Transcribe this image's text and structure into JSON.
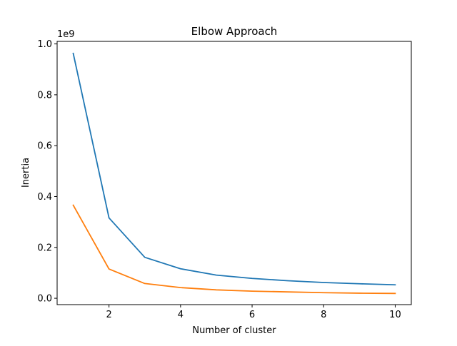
{
  "chart_data": {
    "type": "line",
    "title": "Elbow Approach",
    "xlabel": "Number of cluster",
    "ylabel": "Inertia",
    "y_offset_label": "1e9",
    "xlim": [
      0.55,
      10.45
    ],
    "ylim": [
      -0.025,
      1.01
    ],
    "x_ticks": [
      2,
      4,
      6,
      8,
      10
    ],
    "x_tick_labels": [
      "2",
      "4",
      "6",
      "8",
      "10"
    ],
    "y_ticks": [
      0.0,
      0.2,
      0.4,
      0.6,
      0.8,
      1.0
    ],
    "y_tick_labels": [
      "0.0",
      "0.2",
      "0.4",
      "0.6",
      "0.8",
      "1.0"
    ],
    "grid": false,
    "x": [
      1,
      2,
      3,
      4,
      5,
      6,
      7,
      8,
      9,
      10
    ],
    "series": [
      {
        "color": "#1f77b4",
        "values": [
          0.963,
          0.316,
          0.161,
          0.116,
          0.091,
          0.078,
          0.069,
          0.062,
          0.057,
          0.053
        ]
      },
      {
        "color": "#ff7f0e",
        "values": [
          0.366,
          0.115,
          0.058,
          0.042,
          0.033,
          0.028,
          0.025,
          0.022,
          0.02,
          0.019
        ]
      }
    ]
  }
}
